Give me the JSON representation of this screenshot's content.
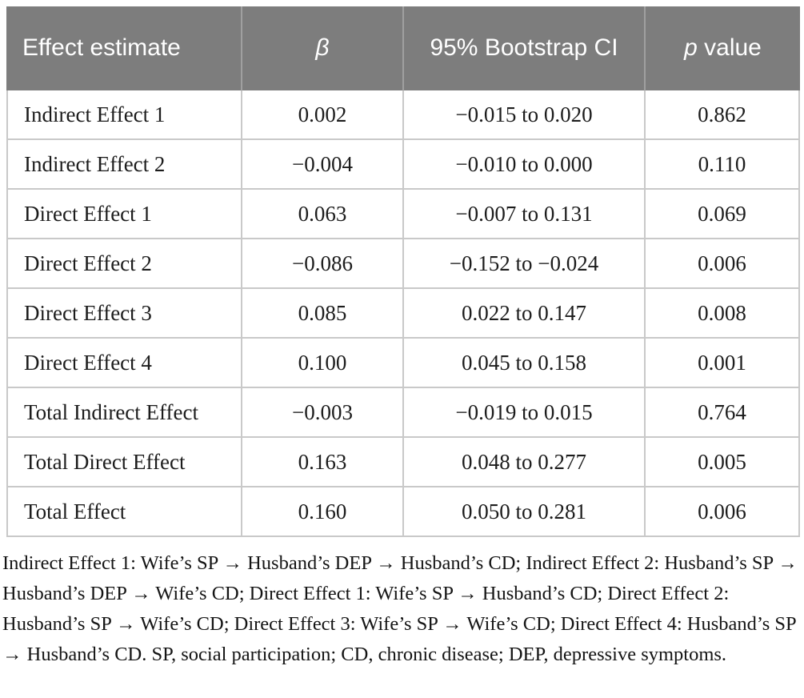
{
  "colors": {
    "header_bg": "#7d7d7d",
    "header_text": "#ffffff",
    "header_divider": "#a0a0a0",
    "row_border": "#c9c9c9",
    "body_text": "#1c1c1c"
  },
  "table": {
    "columns": [
      {
        "label": "Effect estimate"
      },
      {
        "label": "β"
      },
      {
        "label": "95% Bootstrap CI"
      },
      {
        "label_italic": "p",
        "label_rest": " value"
      }
    ],
    "rows": [
      {
        "effect": "Indirect Effect 1",
        "beta": "0.002",
        "ci": "−0.015 to 0.020",
        "p": "0.862"
      },
      {
        "effect": "Indirect Effect 2",
        "beta": "−0.004",
        "ci": "−0.010 to 0.000",
        "p": "0.110"
      },
      {
        "effect": "Direct Effect 1",
        "beta": "0.063",
        "ci": "−0.007 to 0.131",
        "p": "0.069"
      },
      {
        "effect": "Direct Effect 2",
        "beta": "−0.086",
        "ci": "−0.152 to −0.024",
        "p": "0.006"
      },
      {
        "effect": "Direct Effect 3",
        "beta": "0.085",
        "ci": "0.022 to 0.147",
        "p": "0.008"
      },
      {
        "effect": "Direct Effect 4",
        "beta": "0.100",
        "ci": "0.045 to 0.158",
        "p": "0.001"
      },
      {
        "effect": "Total Indirect Effect",
        "beta": "−0.003",
        "ci": "−0.019 to 0.015",
        "p": "0.764"
      },
      {
        "effect": "Total Direct Effect",
        "beta": "0.163",
        "ci": "0.048 to 0.277",
        "p": "0.005"
      },
      {
        "effect": "Total Effect",
        "beta": "0.160",
        "ci": "0.050 to 0.281",
        "p": "0.006"
      }
    ]
  },
  "footnote": "Indirect Effect 1: Wife’s SP → Husband’s DEP → Husband’s CD; Indirect Effect 2: Husband’s SP → Husband’s DEP → Wife’s CD; Direct Effect 1: Wife’s SP → Husband’s CD; Direct Effect 2: Husband’s SP → Wife’s CD; Direct Effect 3: Wife’s SP → Wife’s CD; Direct Effect 4: Husband’s SP → Husband’s CD. SP, social participation; CD, chronic disease; DEP, depressive symptoms."
}
